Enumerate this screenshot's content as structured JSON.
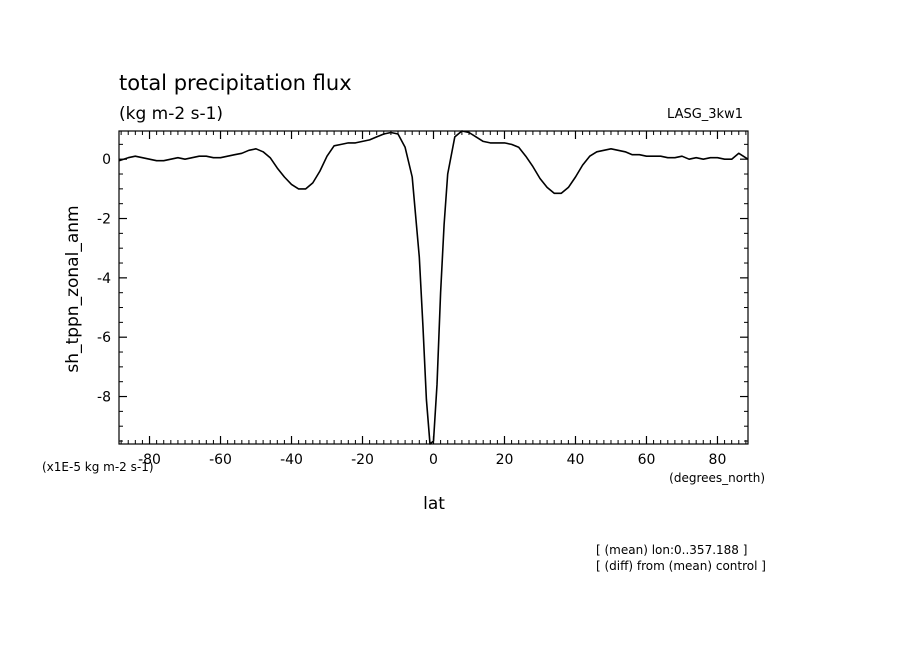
{
  "chart_data": {
    "type": "line",
    "title": "total precipitation flux",
    "subtitle": "(kg m-2 s-1)",
    "label_right": "LASG_3kw1",
    "xlabel": "lat",
    "x_units": "(degrees_north)",
    "ylabel": "sh_tppn_zonal_anm",
    "y_units": "(x1E-5 kg m-2 s-1)",
    "xlim": [
      -88.6,
      88.6
    ],
    "ylim": [
      -9.6,
      0.95
    ],
    "x_ticks": [
      -80,
      -60,
      -40,
      -20,
      0,
      20,
      40,
      60,
      80
    ],
    "x_tick_labels": [
      "-80",
      "-60",
      "-40",
      "-20",
      "0",
      "20",
      "40",
      "60",
      "80"
    ],
    "y_ticks": [
      0,
      -2,
      -4,
      -6,
      -8
    ],
    "y_tick_labels": [
      "0",
      "-2",
      "-4",
      "-6",
      "-8"
    ],
    "grid": false,
    "series": [
      {
        "x": [
          -88.6,
          -86,
          -84,
          -82,
          -80,
          -78,
          -76,
          -74,
          -72,
          -70,
          -68,
          -66,
          -64,
          -62,
          -60,
          -58,
          -56,
          -54,
          -52,
          -50,
          -48,
          -46,
          -44,
          -42,
          -40,
          -38,
          -36,
          -34,
          -32,
          -30,
          -28,
          -26,
          -24,
          -22,
          -20,
          -18,
          -16,
          -14,
          -12,
          -10,
          -8,
          -6,
          -4,
          -3,
          -2,
          -1,
          0,
          1,
          2,
          3,
          4,
          6,
          8,
          10,
          12,
          14,
          16,
          18,
          20,
          22,
          24,
          26,
          28,
          30,
          32,
          34,
          36,
          38,
          40,
          42,
          44,
          46,
          48,
          50,
          52,
          54,
          56,
          58,
          60,
          62,
          64,
          66,
          68,
          70,
          72,
          74,
          76,
          78,
          80,
          82,
          84,
          86,
          88.6
        ],
        "y": [
          -0.05,
          0.05,
          0.1,
          0.05,
          0.0,
          -0.05,
          -0.05,
          0.0,
          0.05,
          0.0,
          0.05,
          0.1,
          0.1,
          0.05,
          0.05,
          0.1,
          0.15,
          0.2,
          0.3,
          0.35,
          0.25,
          0.05,
          -0.3,
          -0.6,
          -0.85,
          -1.0,
          -1.0,
          -0.8,
          -0.4,
          0.1,
          0.45,
          0.5,
          0.55,
          0.55,
          0.6,
          0.65,
          0.75,
          0.85,
          0.9,
          0.85,
          0.4,
          -0.6,
          -3.3,
          -5.6,
          -8.1,
          -9.6,
          -9.5,
          -7.6,
          -4.5,
          -2.2,
          -0.5,
          0.75,
          0.95,
          0.9,
          0.75,
          0.6,
          0.55,
          0.55,
          0.55,
          0.5,
          0.4,
          0.1,
          -0.25,
          -0.65,
          -0.95,
          -1.15,
          -1.15,
          -0.95,
          -0.6,
          -0.2,
          0.1,
          0.25,
          0.3,
          0.35,
          0.3,
          0.25,
          0.15,
          0.15,
          0.1,
          0.1,
          0.1,
          0.05,
          0.05,
          0.1,
          0.0,
          0.05,
          0.0,
          0.05,
          0.05,
          0.0,
          0.0,
          0.2,
          0.0
        ]
      }
    ]
  },
  "notes": [
    "[ (mean) lon:0..357.188 ]",
    "[ (diff) from (mean) control ]"
  ]
}
